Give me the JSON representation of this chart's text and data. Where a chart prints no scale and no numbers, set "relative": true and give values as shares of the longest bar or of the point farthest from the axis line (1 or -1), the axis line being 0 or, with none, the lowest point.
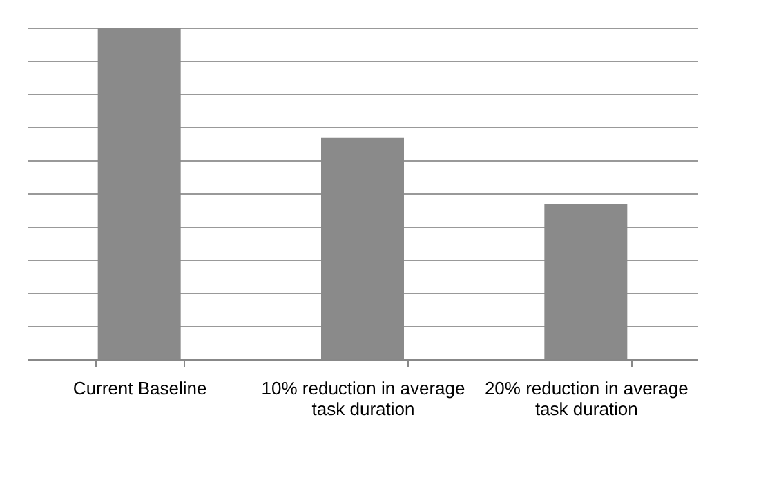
{
  "chart_data": {
    "type": "bar",
    "relative": true,
    "categories": [
      "Current Baseline",
      "10% reduction in average task duration",
      "20% reduction in average task duration"
    ],
    "series": [
      {
        "color": "#8a8a8a",
        "values": [
          1,
          0.667,
          0.467
        ]
      }
    ],
    "grid": "y",
    "tick_labels": "x"
  }
}
